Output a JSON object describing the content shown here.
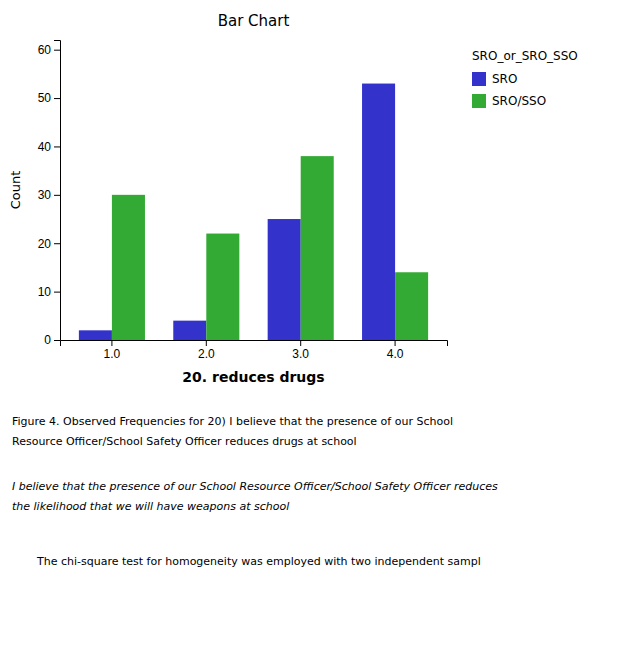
{
  "chart_data": {
    "type": "bar",
    "title": "Bar Chart",
    "xlabel": "20.  reduces drugs",
    "ylabel": "Count",
    "legend_title": "SRO_or_SRO_SSO",
    "legend": "right",
    "grid": false,
    "categories": [
      "1.0",
      "2.0",
      "3.0",
      "4.0"
    ],
    "series": [
      {
        "name": "SRO",
        "color": "#3333cc",
        "values": [
          2,
          4,
          25,
          53
        ]
      },
      {
        "name": "SRO/SSO",
        "color": "#33aa33",
        "values": [
          30,
          22,
          38,
          14
        ]
      }
    ],
    "ylim": [
      0,
      62
    ],
    "yticks": [
      0,
      10,
      20,
      30,
      40,
      50,
      60
    ],
    "caption": [
      "Figure 4.  Observed Frequencies for 20) I believe that the presence of our School",
      "Resource Officer/School Safety Officer reduces drugs at school"
    ],
    "note": [
      "I believe that the presence of our School Resource Officer/School Safety Officer reduces",
      "the likelihood that we will have weapons at school"
    ],
    "footer": "The chi-square test for homogeneity was employed with two independent sampl"
  }
}
